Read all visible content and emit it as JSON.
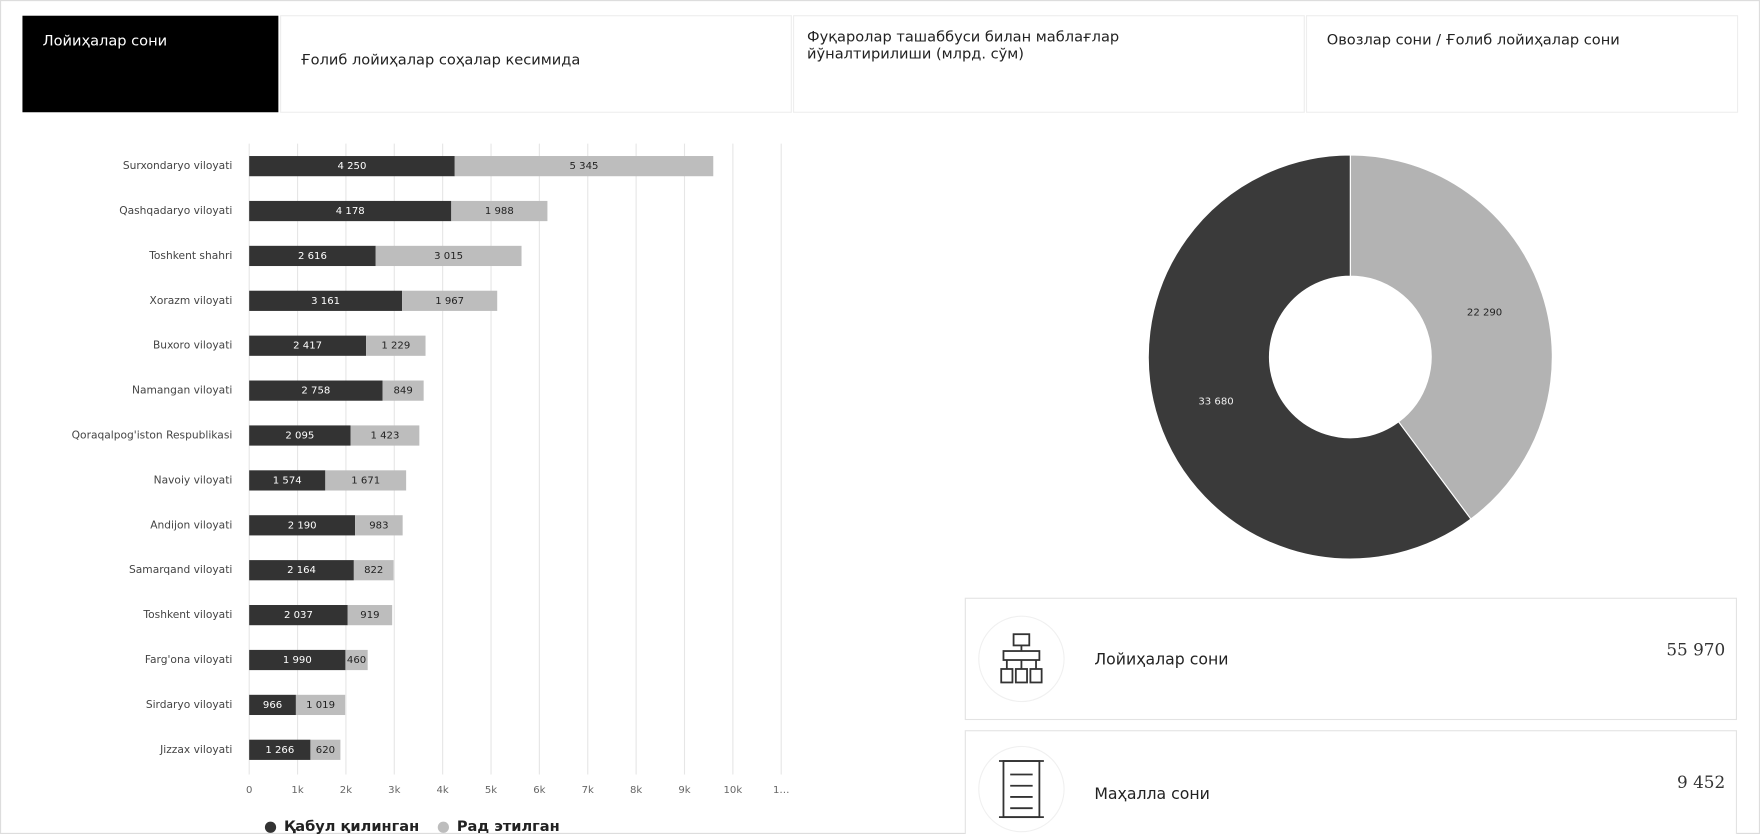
{
  "tabs": [
    "Лойиҳалар сони",
    "Ғолиб лойиҳалар соҳалар кесимида",
    "Фуқаролар ташаббуси билан маблағлар йўналтирилиши (млрд. сўм)",
    "Овозлар сони / Ғолиб лойиҳалар сони"
  ],
  "chart_data": [
    {
      "type": "bar",
      "orientation": "horizontal",
      "stacked": true,
      "categories": [
        "Surxondaryo viloyati",
        "Qashqadaryo viloyati",
        "Toshkent shahri",
        "Xorazm viloyati",
        "Buxoro viloyati",
        "Namangan viloyati",
        "Qoraqalpog'iston Respublikasi",
        "Navoiy viloyati",
        "Andijon viloyati",
        "Samarqand viloyati",
        "Toshkent viloyati",
        "Farg'ona viloyati",
        "Sirdaryo viloyati",
        "Jizzax viloyati"
      ],
      "series": [
        {
          "name": "Қабул қилинган",
          "color": "#333333",
          "values": [
            4250,
            4178,
            2616,
            3161,
            2417,
            2758,
            2095,
            1574,
            2190,
            2164,
            2037,
            1990,
            966,
            1266
          ],
          "value_labels": [
            "4 250",
            "4 178",
            "2 616",
            "3 161",
            "2 417",
            "2 758",
            "2 095",
            "1 574",
            "2 190",
            "2 164",
            "2 037",
            "1 990",
            "966",
            "1 266"
          ]
        },
        {
          "name": "Рад этилган",
          "color": "#bdbdbd",
          "values": [
            5345,
            1988,
            3015,
            1967,
            1229,
            849,
            1423,
            1671,
            983,
            822,
            919,
            460,
            1019,
            620
          ],
          "value_labels": [
            "5 345",
            "1 988",
            "3 015",
            "1 967",
            "1 229",
            "849",
            "1 423",
            "1 671",
            "983",
            "822",
            "919",
            "460",
            "1 019",
            "620"
          ]
        }
      ],
      "xlim": [
        0,
        11000
      ],
      "xticks": [
        0,
        {
          "value": 1000,
          "label": "1k"
        },
        {
          "value": 2000,
          "label": "2k"
        },
        {
          "value": 3000,
          "label": "3k"
        },
        {
          "value": 4000,
          "label": "4k"
        },
        {
          "value": 5000,
          "label": "5k"
        },
        {
          "value": 6000,
          "label": "6k"
        },
        {
          "value": 7000,
          "label": "7k"
        },
        {
          "value": 8000,
          "label": "8k"
        },
        {
          "value": 9000,
          "label": "9k"
        },
        {
          "value": 10000,
          "label": "10k"
        },
        {
          "value": 11000,
          "label": "1…"
        }
      ],
      "grid": true,
      "legend": "bottom"
    },
    {
      "type": "donut",
      "values": [
        22290,
        33680
      ],
      "value_labels": [
        "22 290",
        "33 680"
      ],
      "colors": [
        "#b3b3b3",
        "#3a3a3a"
      ]
    }
  ],
  "stats": [
    {
      "label": "Лойиҳалар сони",
      "value": "55 970"
    },
    {
      "label": "Маҳалла сони",
      "value": "9 452"
    }
  ]
}
